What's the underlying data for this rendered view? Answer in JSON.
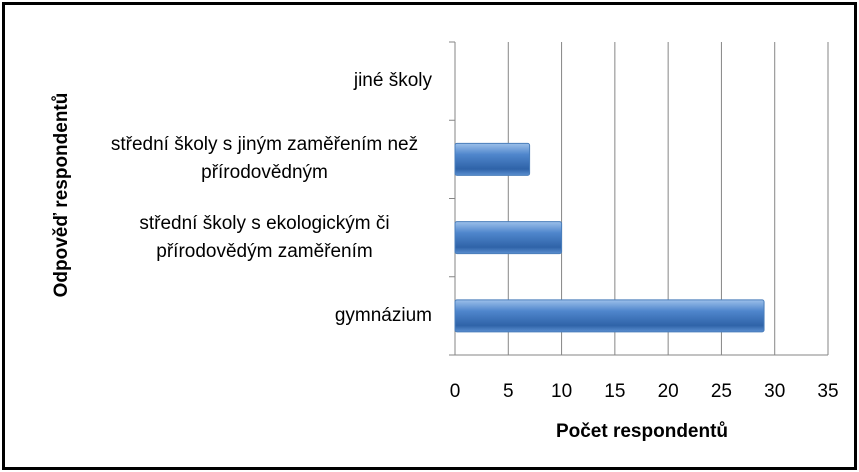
{
  "chart_data": {
    "type": "bar",
    "orientation": "horizontal",
    "categories": [
      "gymnázium",
      "střední školy s ekologickým či přírodovědým zaměřením",
      "střední školy s jiným zaměřením než přírodovědným",
      "jiné školy"
    ],
    "values": [
      29,
      10,
      7,
      0
    ],
    "color": "#4a7ebb",
    "xlabel": "Počet respondentů",
    "ylabel": "Odpověď respondentů",
    "xlim": [
      0,
      35
    ],
    "xticks": [
      0,
      5,
      10,
      15,
      20,
      25,
      30,
      35
    ],
    "grid": true
  }
}
